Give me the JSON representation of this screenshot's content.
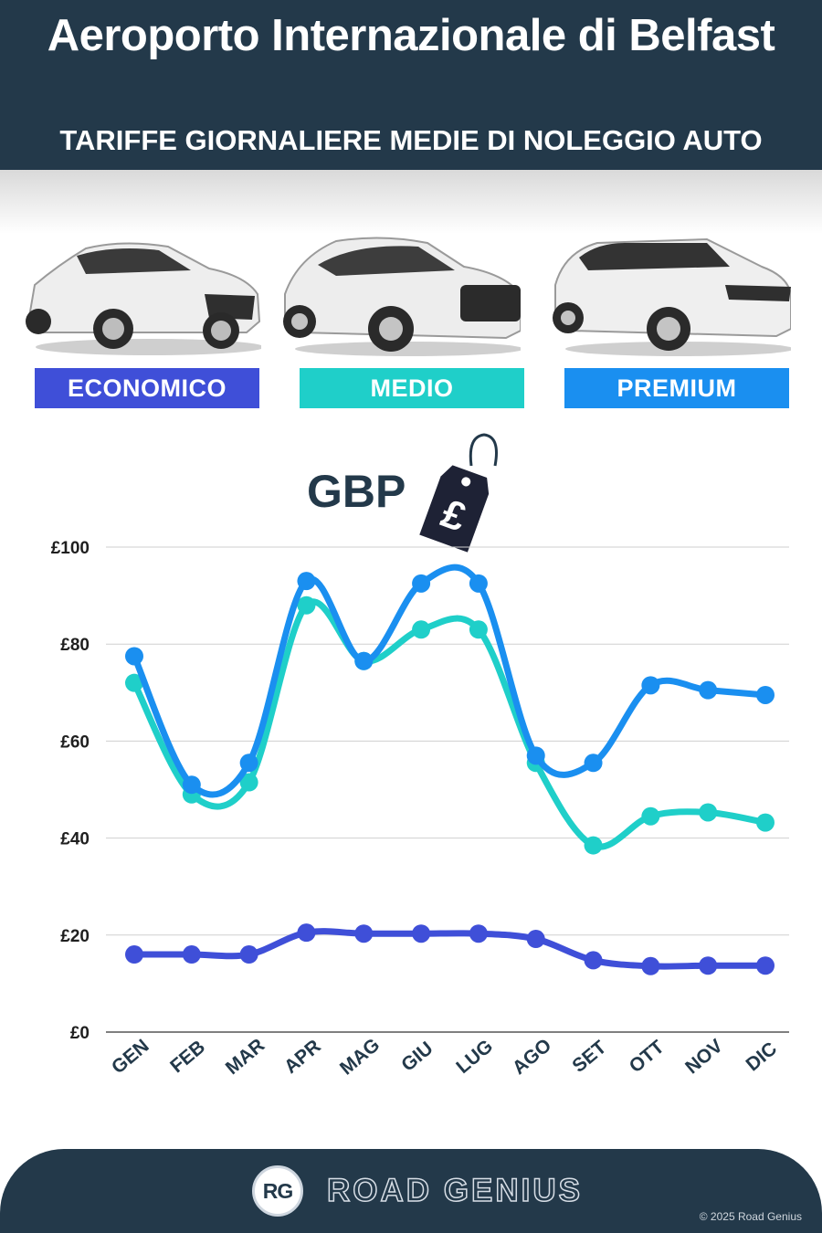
{
  "header": {
    "title": "Aeroporto Internazionale di Belfast",
    "subtitle": "TARIFFE GIORNALIERE MEDIE DI NOLEGGIO AUTO"
  },
  "categories": [
    {
      "label": "ECONOMICO",
      "color": "#3f4fd8"
    },
    {
      "label": "MEDIO",
      "color": "#1fcfc9"
    },
    {
      "label": "PREMIUM",
      "color": "#1a8ff0"
    }
  ],
  "currency_label": "GBP",
  "price_tag_icon": "pound-price-tag-icon",
  "chart_data": {
    "type": "line",
    "title": "",
    "xlabel": "",
    "ylabel": "",
    "categories": [
      "GEN",
      "FEB",
      "MAR",
      "APR",
      "MAG",
      "GIU",
      "LUG",
      "AGO",
      "SET",
      "OTT",
      "NOV",
      "DIC"
    ],
    "ylim": [
      0,
      100
    ],
    "yticks": [
      {
        "value": 0,
        "label": "£0"
      },
      {
        "value": 20,
        "label": "£20"
      },
      {
        "value": 40,
        "label": "£40"
      },
      {
        "value": 60,
        "label": "£60"
      },
      {
        "value": 80,
        "label": "£80"
      },
      {
        "value": 100,
        "label": "£100"
      }
    ],
    "grid": true,
    "series": [
      {
        "name": "ECONOMICO",
        "color": "#3f4fd8",
        "values": [
          16,
          16,
          16,
          20.5,
          20.3,
          20.3,
          20.3,
          19.2,
          14.8,
          13.6,
          13.7,
          13.7
        ]
      },
      {
        "name": "MEDIO",
        "color": "#1fcfc9",
        "values": [
          72,
          49,
          51.5,
          88,
          76.5,
          83,
          83,
          55.5,
          38.5,
          44.5,
          45.3,
          43.2
        ]
      },
      {
        "name": "PREMIUM",
        "color": "#1a8ff0",
        "values": [
          77.5,
          51,
          55.5,
          93,
          76.5,
          92.5,
          92.5,
          57,
          55.5,
          71.5,
          70.5,
          69.5
        ]
      }
    ]
  },
  "footer": {
    "logo_text": "RG",
    "brand": "ROAD GENIUS",
    "copyright": "© 2025 Road Genius"
  }
}
